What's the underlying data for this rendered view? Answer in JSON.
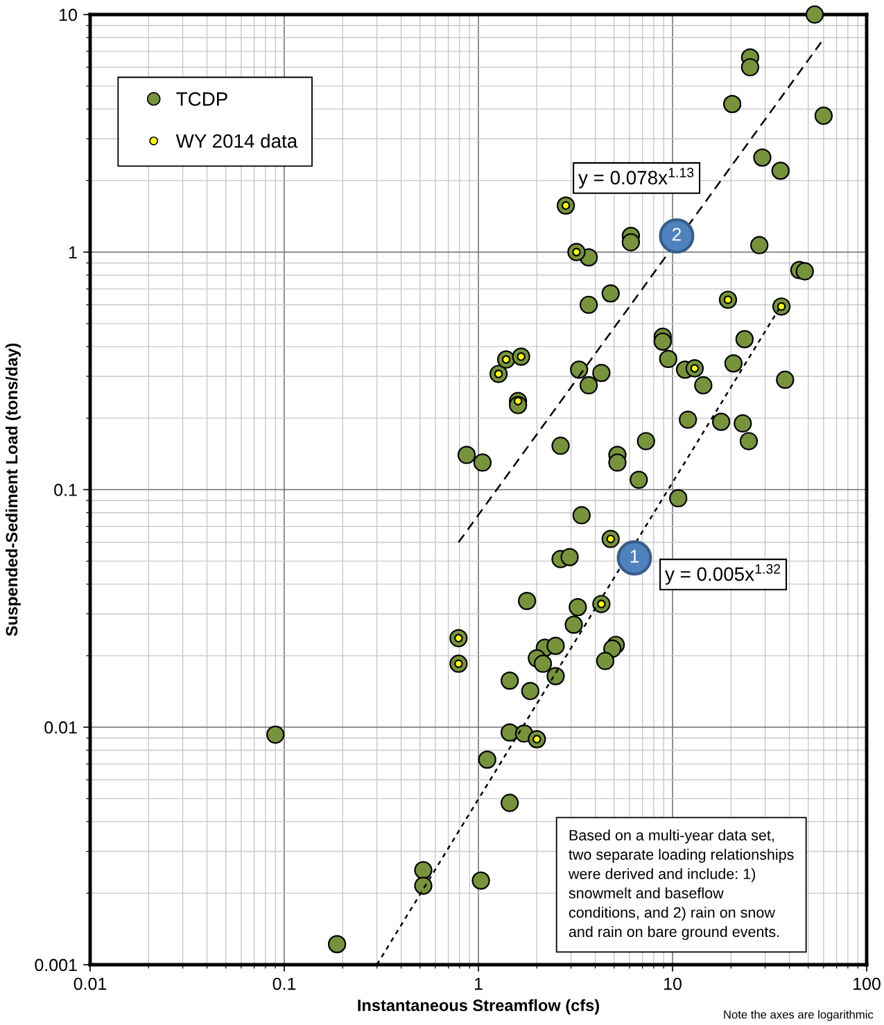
{
  "chart_data": {
    "type": "scatter",
    "xlabel": "Instantaneous Streamflow (cfs)",
    "ylabel": "Suspended-Sediment Load (tons/day)",
    "log": "xy",
    "xlim": [
      0.01,
      100
    ],
    "ylim": [
      0.001,
      10
    ],
    "xticks": [
      0.01,
      0.1,
      1,
      10,
      100
    ],
    "yticks": [
      0.001,
      0.01,
      0.1,
      1,
      10
    ],
    "grid": true,
    "legend": "top left",
    "marker": "circle",
    "series": [
      {
        "name": "TCDP",
        "color": "#77933c",
        "x": [
          54,
          25.1,
          25.1,
          20.3,
          60,
          29,
          36,
          6.1,
          6.1,
          3.7,
          28,
          45,
          48,
          4.8,
          3.7,
          8.9,
          8.9,
          9.5,
          23.5,
          20.6,
          3.3,
          4.3,
          3.7,
          11.6,
          14.4,
          38,
          12,
          17.8,
          23,
          24.7,
          7.3,
          2.65,
          0.87,
          1.05,
          5.2,
          5.2,
          6.7,
          10.7,
          3.4,
          2.65,
          2.95,
          1.78,
          3.25,
          3.1,
          2.2,
          2.5,
          2.0,
          2.15,
          2.5,
          1.45,
          1.85,
          5.1,
          4.9,
          4.5,
          1.45,
          1.72,
          1.11,
          1.45,
          0.09,
          0.52,
          0.52,
          1.03,
          0.187,
          2.82,
          3.2,
          1.27,
          1.39,
          1.66,
          1.6,
          1.6,
          19.3,
          36.4,
          13,
          4.8,
          4.3,
          0.79,
          0.79,
          2.0
        ],
        "values": [
          10,
          6.6,
          6.0,
          4.2,
          3.75,
          2.5,
          2.2,
          1.17,
          1.1,
          0.95,
          1.07,
          0.84,
          0.83,
          0.67,
          0.6,
          0.44,
          0.42,
          0.355,
          0.43,
          0.34,
          0.32,
          0.31,
          0.275,
          0.32,
          0.275,
          0.29,
          0.197,
          0.193,
          0.19,
          0.16,
          0.16,
          0.153,
          0.14,
          0.13,
          0.14,
          0.13,
          0.11,
          0.092,
          0.078,
          0.051,
          0.052,
          0.034,
          0.032,
          0.027,
          0.0216,
          0.022,
          0.0195,
          0.0185,
          0.0164,
          0.0157,
          0.0142,
          0.0222,
          0.0214,
          0.019,
          0.0095,
          0.0094,
          0.0073,
          0.0048,
          0.0093,
          0.0025,
          0.00215,
          0.00226,
          0.00122,
          1.57,
          1.0,
          0.307,
          0.353,
          0.363,
          0.236,
          0.227,
          0.63,
          0.59,
          0.324,
          0.062,
          0.033,
          0.0237,
          0.0185,
          0.0089
        ]
      },
      {
        "type": "line",
        "color": "#000000",
        "line_style": "dashed",
        "marker": "none",
        "x": [
          0.79,
          60
        ],
        "values": [
          0.06,
          7.9
        ]
      },
      {
        "type": "line",
        "color": "#000000",
        "line_style": "dotted",
        "marker": "none",
        "x": [
          0.3,
          36.4
        ],
        "values": [
          0.001,
          0.6
        ]
      },
      {
        "name": "WY 2014 data",
        "color": "#ffff00",
        "x": [
          2.82,
          3.2,
          1.27,
          1.39,
          1.66,
          1.6,
          19.3,
          36.4,
          13,
          4.8,
          4.3,
          0.79,
          0.79,
          2.0
        ],
        "values": [
          1.57,
          1.0,
          0.307,
          0.353,
          0.363,
          0.236,
          0.63,
          0.59,
          0.324,
          0.062,
          0.033,
          0.0237,
          0.0185,
          0.0089
        ]
      }
    ],
    "annotations": [
      "y = 0.078x$^{1.13}$",
      {
        "text": "2",
        "x": 10.5,
        "y": 1.17
      },
      "y = 0.005x$^{1.32}$",
      "1",
      "Based on a multi-year data set,\ntwo separate loading relationships\nwere derived and include: 1)\nsnowmelt and baseflow\nconditions, and 2) rain on snow\nand rain on bare ground events.",
      "Note the axes are logarithmic"
    ]
  }
}
